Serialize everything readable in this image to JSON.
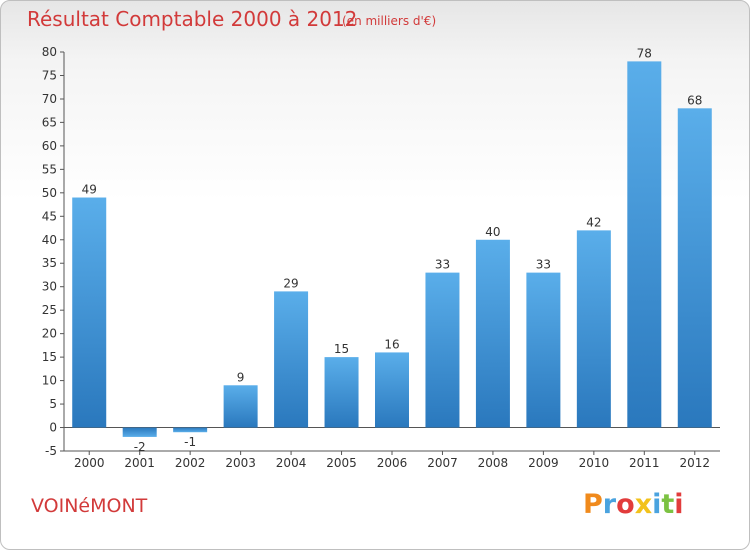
{
  "chart_data": {
    "type": "bar",
    "title": "Résultat Comptable 2000 à 2012",
    "subtitle": "(en milliers d'€)",
    "categories": [
      "2000",
      "2001",
      "2002",
      "2003",
      "2004",
      "2005",
      "2006",
      "2007",
      "2008",
      "2009",
      "2010",
      "2011",
      "2012"
    ],
    "values": [
      49,
      -2,
      -1,
      9,
      29,
      15,
      16,
      33,
      40,
      33,
      42,
      78,
      68
    ],
    "value_labels": [
      "49",
      "-2",
      "-1",
      "9",
      "29",
      "15",
      "16",
      "33",
      "40",
      "33",
      "42",
      "78",
      "68"
    ],
    "ylim": [
      -5,
      80
    ],
    "yticks": [
      -5,
      0,
      5,
      10,
      15,
      20,
      25,
      30,
      35,
      40,
      45,
      50,
      55,
      60,
      65,
      70,
      75,
      80
    ],
    "grid": false,
    "bar_color": "#4a9fe0"
  },
  "footer": {
    "commune": "VOINéMONT",
    "logo_text": "Proxiti",
    "logo_colors": [
      "#f08a1c",
      "#4aa3df",
      "#e23c3c",
      "#f2c21b",
      "#4aa3df",
      "#7cc242",
      "#e23c3c"
    ]
  },
  "colors": {
    "title": "#d23a3a",
    "axis": "#555555"
  }
}
